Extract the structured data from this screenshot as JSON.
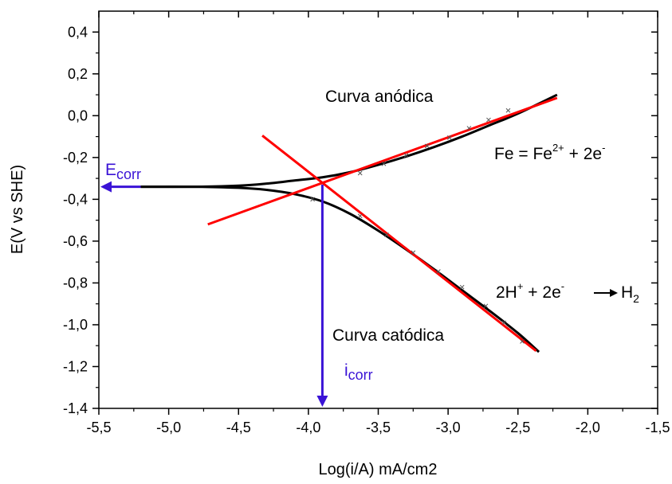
{
  "chart_data": {
    "type": "line",
    "xlabel": "Log(i/A) mA/cm2",
    "ylabel": "E(V vs SHE)",
    "xlim": [
      -5.5,
      -1.5
    ],
    "ylim": [
      -1.4,
      0.5
    ],
    "x_ticks": [
      "-5,5",
      "-5,0",
      "-4,5",
      "-4,0",
      "-3,5",
      "-3,0",
      "-2,5",
      "-2,0",
      "-1,5"
    ],
    "y_ticks": [
      "0,4",
      "0,2",
      "0,0",
      "-0,2",
      "-0,4",
      "-0,6",
      "-0,8",
      "-1,0",
      "-1,2",
      "-1,4"
    ],
    "colors": {
      "curve": "#000000",
      "tafel": "#ff0000",
      "marker": "#3a13d6"
    },
    "series": [
      {
        "role": "anodic-curve",
        "x": [
          -5.2,
          -4.8,
          -4.5,
          -4.3,
          -4.1,
          -3.9,
          -3.7,
          -3.5,
          -3.3,
          -3.1,
          -2.9,
          -2.7,
          -2.5,
          -2.22
        ],
        "y": [
          -0.34,
          -0.34,
          -0.335,
          -0.325,
          -0.31,
          -0.295,
          -0.27,
          -0.235,
          -0.195,
          -0.15,
          -0.1,
          -0.045,
          0.01,
          0.1
        ]
      },
      {
        "role": "cathodic-curve",
        "x": [
          -5.2,
          -4.8,
          -4.5,
          -4.3,
          -4.1,
          -3.9,
          -3.7,
          -3.5,
          -3.3,
          -3.1,
          -2.9,
          -2.7,
          -2.5,
          -2.35
        ],
        "y": [
          -0.34,
          -0.34,
          -0.345,
          -0.355,
          -0.375,
          -0.41,
          -0.47,
          -0.55,
          -0.64,
          -0.735,
          -0.835,
          -0.935,
          -1.04,
          -1.13
        ]
      },
      {
        "role": "anodic-tafel-line",
        "x": [
          -4.72,
          -2.22
        ],
        "y": [
          -0.52,
          0.085
        ]
      },
      {
        "role": "cathodic-tafel-line",
        "x": [
          -4.33,
          -2.37
        ],
        "y": [
          -0.095,
          -1.125
        ]
      },
      {
        "role": "cathodic-points",
        "x": [
          -3.97,
          -3.63,
          -3.44,
          -3.25,
          -3.07,
          -2.9,
          -2.73,
          -2.6,
          -2.47
        ],
        "y": [
          -0.4,
          -0.48,
          -0.57,
          -0.655,
          -0.745,
          -0.82,
          -0.91,
          -0.99,
          -1.08
        ]
      },
      {
        "role": "anodic-points",
        "x": [
          -3.63,
          -3.46,
          -3.3,
          -3.15,
          -2.99,
          -2.85,
          -2.71,
          -2.57
        ],
        "y": [
          -0.275,
          -0.23,
          -0.19,
          -0.145,
          -0.105,
          -0.06,
          -0.02,
          0.025
        ]
      }
    ],
    "ecorr": {
      "x": -5.2,
      "y": -0.34,
      "label": "E",
      "sub": "corr"
    },
    "icorr": {
      "x": -3.9,
      "y": -0.33,
      "label": "i",
      "sub": "corr"
    },
    "annotations": {
      "anodic": "Curva anódica",
      "cathodic": "Curva catódica",
      "anodic_reaction": {
        "base": "Fe = Fe",
        "sup": "2+",
        "mid": " +  2e",
        "sup2": "-"
      },
      "cathodic_reaction": {
        "base": "2H",
        "sup": "+",
        "mid": " +  2e",
        "sup2": "-",
        "product": "H",
        "sub": "2"
      }
    }
  }
}
